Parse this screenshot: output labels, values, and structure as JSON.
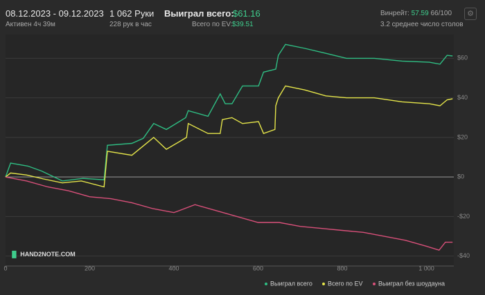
{
  "header": {
    "date_range": "08.12.2023 - 09.12.2023",
    "active": "Активен 4ч 39м",
    "hands": "1 062 Руки",
    "hands_per_hour": "228 рук в час",
    "won_label": "Выиграл всего:",
    "won_value": "$61.16",
    "ev_label": "Всего по EV:",
    "ev_value": "$39.51",
    "winrate_label": "Винрейт:",
    "winrate_value": "57.59",
    "winrate_ratio": "66/100",
    "avg_tables": "3.2 среднее число столов",
    "logo": "HAND2NOTE.COM"
  },
  "chart_data": {
    "type": "line",
    "legend": "bottom-right",
    "grid": true,
    "xlim": [
      0,
      1065
    ],
    "xticks": [
      0,
      200,
      400,
      600,
      800,
      {
        "value": 1000,
        "label": "1 000"
      }
    ],
    "ylim": [
      -45,
      72
    ],
    "yticks": [
      {
        "value": -40,
        "label": "-$40"
      },
      {
        "value": -20,
        "label": "-$20"
      },
      {
        "value": 0,
        "label": "$0"
      },
      {
        "value": 20,
        "label": "$20"
      },
      {
        "value": 40,
        "label": "$40"
      },
      {
        "value": 60,
        "label": "$60"
      }
    ],
    "series": [
      {
        "name": "Выиграл всего",
        "color": "#2fbf84",
        "x": [
          0,
          12,
          53,
          86,
          135,
          184,
          234,
          242,
          300,
          327,
          352,
          382,
          428,
          434,
          481,
          510,
          522,
          538,
          563,
          601,
          613,
          642,
          648,
          665,
          711,
          761,
          810,
          876,
          942,
          1007,
          1032,
          1049,
          1062
        ],
        "values": [
          0,
          7,
          5.5,
          3,
          -2,
          -0.7,
          -1.4,
          16,
          17,
          19.5,
          27,
          24,
          30,
          33.5,
          30.7,
          42,
          37,
          37,
          46,
          46,
          53,
          54.5,
          61.5,
          67,
          65,
          62.5,
          60,
          60,
          58.6,
          58,
          57,
          61.5,
          61.16
        ]
      },
      {
        "name": "Всего по EV",
        "color": "#e6e64a",
        "x": [
          0,
          12,
          50,
          90,
          135,
          180,
          234,
          242,
          300,
          352,
          382,
          430,
          434,
          481,
          510,
          515,
          538,
          563,
          601,
          613,
          640,
          642,
          648,
          665,
          711,
          761,
          810,
          876,
          942,
          1007,
          1032,
          1049,
          1062
        ],
        "values": [
          0,
          2,
          1,
          -1,
          -3,
          -2,
          -5,
          13,
          11,
          20,
          14,
          20,
          27,
          22,
          22,
          29,
          30,
          27,
          28,
          22,
          24,
          36,
          40,
          46,
          44,
          41,
          40,
          40,
          38,
          37,
          36,
          39,
          39.51
        ]
      },
      {
        "name": "Выиграл без шоудауна",
        "color": "#d9507a",
        "x": [
          0,
          50,
          100,
          150,
          200,
          250,
          300,
          350,
          400,
          450,
          500,
          550,
          600,
          650,
          700,
          750,
          800,
          850,
          900,
          950,
          1000,
          1030,
          1045,
          1062
        ],
        "values": [
          0,
          -2,
          -5,
          -7,
          -10,
          -11,
          -13,
          -16,
          -18,
          -14,
          -17,
          -20,
          -23,
          -23,
          -25,
          -26,
          -27,
          -28,
          -30,
          -32,
          -35,
          -37,
          -33,
          -33
        ]
      }
    ]
  }
}
